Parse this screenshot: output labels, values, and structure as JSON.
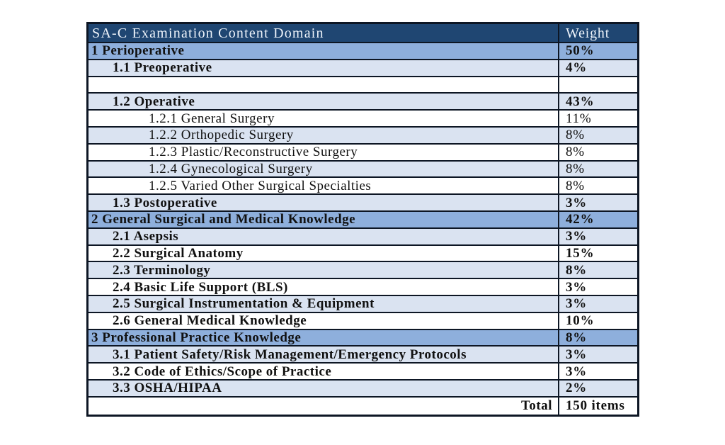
{
  "table": {
    "header": {
      "domain": "SA-C Examination Content Domain",
      "weight": "Weight"
    },
    "rows": [
      {
        "label": "1 Perioperative",
        "weight": "50%",
        "level": 1,
        "bold": true,
        "bg": "medium"
      },
      {
        "label": "1.1 Preoperative",
        "weight": "4%",
        "level": 2,
        "bold": true,
        "bg": "light"
      },
      {
        "label": "",
        "weight": "",
        "level": 1,
        "bold": false,
        "bg": "white"
      },
      {
        "label": "1.2 Operative",
        "weight": "43%",
        "level": 2,
        "bold": true,
        "bg": "light"
      },
      {
        "label": "1.2.1 General Surgery",
        "weight": "11%",
        "level": 3,
        "bold": false,
        "bg": "white"
      },
      {
        "label": "1.2.2 Orthopedic Surgery",
        "weight": "8%",
        "level": 3,
        "bold": false,
        "bg": "light"
      },
      {
        "label": "1.2.3 Plastic/Reconstructive Surgery",
        "weight": "8%",
        "level": 3,
        "bold": false,
        "bg": "white"
      },
      {
        "label": "1.2.4 Gynecological Surgery",
        "weight": "8%",
        "level": 3,
        "bold": false,
        "bg": "light"
      },
      {
        "label": "1.2.5 Varied Other Surgical Specialties",
        "weight": "8%",
        "level": 3,
        "bold": false,
        "bg": "white"
      },
      {
        "label": "1.3 Postoperative",
        "weight": "3%",
        "level": 2,
        "bold": true,
        "bg": "light"
      },
      {
        "label": "2 General Surgical and Medical Knowledge",
        "weight": "42%",
        "level": 1,
        "bold": true,
        "bg": "medium"
      },
      {
        "label": "2.1 Asepsis",
        "weight": "3%",
        "level": 2,
        "bold": true,
        "bg": "light"
      },
      {
        "label": "2.2 Surgical Anatomy",
        "weight": "15%",
        "level": 2,
        "bold": true,
        "bg": "white"
      },
      {
        "label": "2.3 Terminology",
        "weight": "8%",
        "level": 2,
        "bold": true,
        "bg": "light"
      },
      {
        "label": "2.4 Basic Life Support (BLS)",
        "weight": "3%",
        "level": 2,
        "bold": true,
        "bg": "white"
      },
      {
        "label": "2.5 Surgical Instrumentation & Equipment",
        "weight": "3%",
        "level": 2,
        "bold": true,
        "bg": "light"
      },
      {
        "label": "2.6 General Medical Knowledge",
        "weight": "10%",
        "level": 2,
        "bold": true,
        "bg": "white"
      },
      {
        "label": "3 Professional Practice Knowledge",
        "weight": "8%",
        "level": 1,
        "bold": true,
        "bg": "medium"
      },
      {
        "label": "3.1 Patient Safety/Risk Management/Emergency Protocols",
        "weight": "3%",
        "level": 2,
        "bold": true,
        "bg": "light"
      },
      {
        "label": "3.2 Code of Ethics/Scope of Practice",
        "weight": "3%",
        "level": 2,
        "bold": true,
        "bg": "white"
      },
      {
        "label": "3.3 OSHA/HIPAA",
        "weight": "2%",
        "level": 2,
        "bold": true,
        "bg": "light"
      },
      {
        "label": "Total",
        "weight": "150 items",
        "level": 1,
        "bold": true,
        "bg": "white",
        "align": "right"
      }
    ],
    "colors": {
      "header_bg": "#1f4672",
      "medium": "#8eafdc",
      "light": "#dae3f1",
      "border": "#0d1624"
    }
  }
}
